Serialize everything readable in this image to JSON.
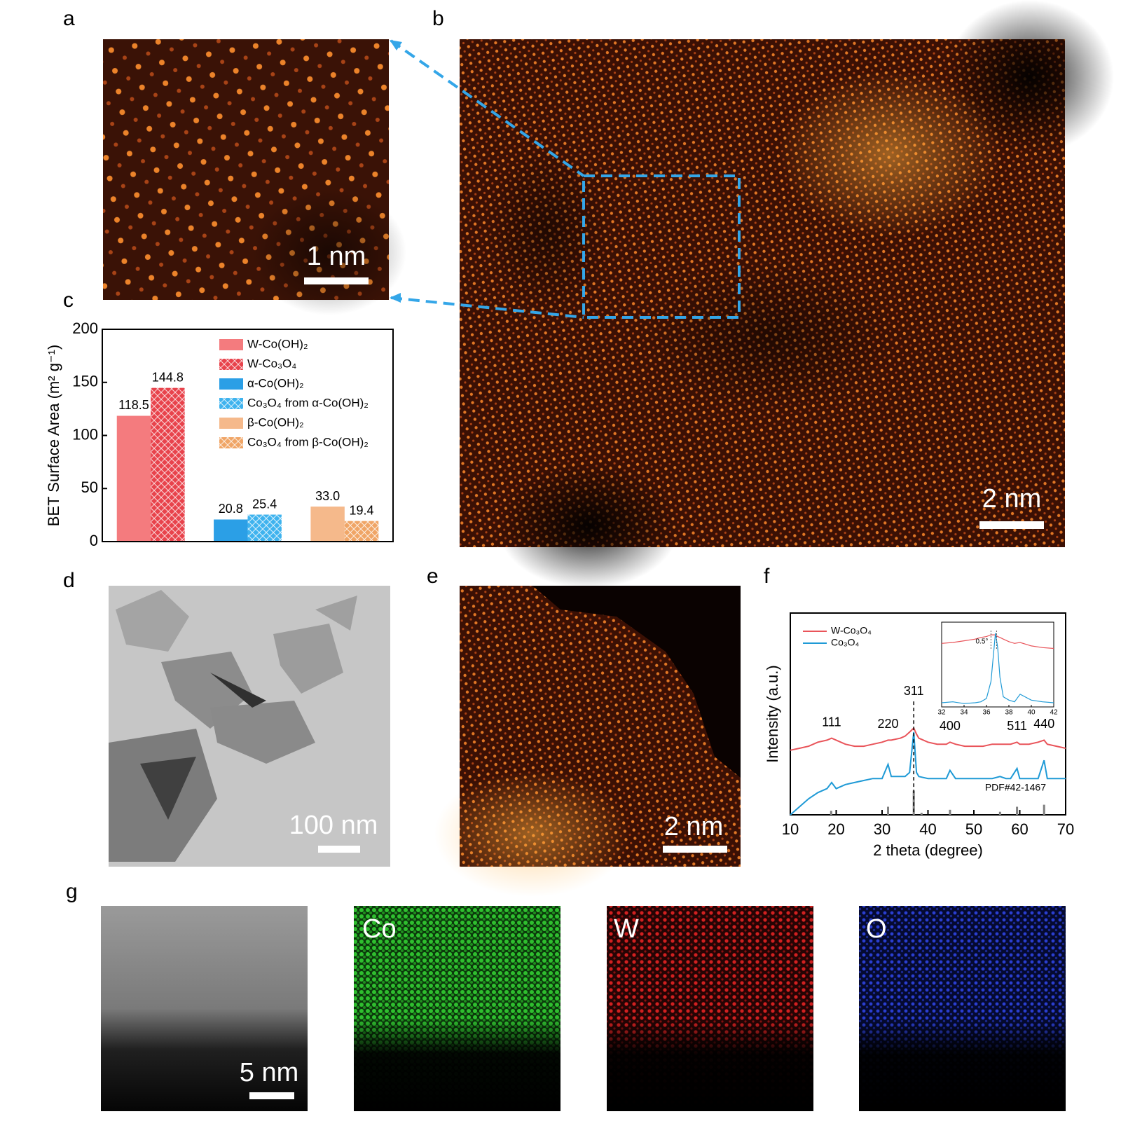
{
  "panel_labels": [
    "a",
    "b",
    "c",
    "d",
    "e",
    "f",
    "g"
  ],
  "scale_bars": [
    "1 nm",
    "2 nm",
    "100 nm",
    "2 nm",
    "5 nm"
  ],
  "eds_labels": [
    "Co",
    "W",
    "O"
  ],
  "chart_data": [
    {
      "type": "bar",
      "ylabel": "BET Surface Area (m² g⁻¹)",
      "categories": [
        null,
        null,
        null
      ],
      "ylim": [
        0,
        200
      ],
      "yticks": [
        0,
        50,
        100,
        150,
        200
      ],
      "legend": "upper right",
      "series": [
        {
          "name": "W-Co(OH)₂",
          "color": "#f47b7e",
          "hatch": false,
          "values": [
            118.5,
            null,
            null
          ]
        },
        {
          "name": "W-Co₃O₄",
          "color": "#e8434c",
          "hatch": true,
          "values": [
            144.8,
            null,
            null
          ]
        },
        {
          "name": "α-Co(OH)₂",
          "color": "#2b9fe6",
          "hatch": false,
          "values": [
            null,
            20.8,
            null
          ]
        },
        {
          "name": "Co₃O₄ from α-Co(OH)₂",
          "color": "#3fb3ee",
          "hatch": true,
          "values": [
            null,
            25.4,
            null
          ]
        },
        {
          "name": "β-Co(OH)₂",
          "color": "#f5b98b",
          "hatch": false,
          "values": [
            null,
            null,
            33.0
          ],
          "value_labels": [
            null,
            null,
            "33.0"
          ]
        },
        {
          "name": "Co₃O₄ from β-Co(OH)₂",
          "color": "#f0a566",
          "hatch": true,
          "values": [
            null,
            null,
            19.4
          ]
        }
      ]
    },
    {
      "type": "line",
      "xlabel": "2 theta (degree)",
      "ylabel": "Intensity (a.u.)",
      "xlim": [
        10,
        70
      ],
      "xticks": [
        10,
        20,
        30,
        40,
        50,
        60,
        70
      ],
      "ylim": [
        0,
        10
      ],
      "legend": "upper left",
      "x": [
        10,
        12,
        14,
        16,
        18,
        19,
        20,
        22,
        24,
        26,
        28,
        30,
        31.3,
        32,
        34,
        35,
        36,
        36.9,
        37.5,
        38,
        40,
        42,
        44,
        44.8,
        46,
        48,
        50,
        52,
        54,
        55.7,
        57,
        58,
        59.4,
        60,
        62,
        64,
        65.3,
        66,
        68,
        70
      ],
      "series": [
        {
          "name": "W-Co₃O₄",
          "color": "#e9545a",
          "values": [
            3.2,
            3.3,
            3.4,
            3.6,
            3.7,
            3.8,
            3.7,
            3.5,
            3.4,
            3.4,
            3.5,
            3.6,
            3.7,
            3.7,
            3.8,
            3.9,
            4.1,
            4.3,
            4.0,
            3.8,
            3.6,
            3.5,
            3.5,
            3.6,
            3.5,
            3.4,
            3.4,
            3.4,
            3.5,
            3.5,
            3.5,
            3.5,
            3.6,
            3.5,
            3.5,
            3.6,
            3.7,
            3.5,
            3.4,
            3.3
          ]
        },
        {
          "name": "Co₃O₄",
          "color": "#1f9ad6",
          "values": [
            0,
            0.4,
            0.8,
            1.1,
            1.3,
            1.6,
            1.3,
            1.5,
            1.6,
            1.7,
            1.8,
            1.8,
            2.5,
            1.9,
            1.9,
            1.9,
            2.1,
            4.1,
            2.1,
            1.9,
            1.8,
            1.8,
            1.8,
            2.2,
            1.8,
            1.8,
            1.8,
            1.8,
            1.8,
            1.9,
            1.8,
            1.8,
            2.3,
            1.8,
            1.8,
            1.8,
            2.7,
            1.8,
            1.8,
            1.8
          ]
        }
      ],
      "peak_labels": [
        {
          "label": "111",
          "x": 19
        },
        {
          "label": "220",
          "x": 31.3
        },
        {
          "label": "311",
          "x": 36.9,
          "dashed": true
        },
        {
          "label": "400",
          "x": 44.8
        },
        {
          "label": "511",
          "x": 59.4
        },
        {
          "label": "440",
          "x": 65.3
        }
      ],
      "reference": {
        "label": "PDF#42-1467",
        "color": "#808080",
        "x": [
          18.9,
          31.3,
          36.9,
          38.6,
          44.8,
          55.7,
          59.4,
          65.3
        ],
        "heights": [
          0.2,
          0.4,
          1.2,
          0.1,
          0.25,
          0.15,
          0.4,
          0.5
        ]
      },
      "inset": {
        "type": "line",
        "xlim": [
          32,
          42
        ],
        "xticks": [
          32,
          34,
          36,
          38,
          40,
          42
        ],
        "ylim": [
          0,
          10
        ],
        "x": [
          32,
          33,
          34,
          35,
          35.5,
          36,
          36.4,
          36.8,
          37,
          37.2,
          37.5,
          38,
          38.5,
          39,
          40,
          41,
          42
        ],
        "series": [
          {
            "color": "#e9545a",
            "values": [
              7.5,
              7.6,
              7.8,
              8.0,
              8.2,
              8.3,
              8.5,
              8.5,
              8.3,
              8.2,
              8.0,
              7.7,
              7.5,
              7.6,
              7.2,
              7.0,
              6.9
            ]
          },
          {
            "color": "#1f9ad6",
            "values": [
              0.5,
              0.6,
              0.4,
              0.5,
              0.6,
              1.0,
              3.0,
              8.7,
              7.0,
              3.5,
              1.2,
              0.8,
              0.6,
              1.5,
              0.8,
              0.6,
              0.5
            ]
          }
        ],
        "annotation": "0.5°",
        "shift_lines": [
          36.4,
          36.9
        ]
      }
    }
  ]
}
